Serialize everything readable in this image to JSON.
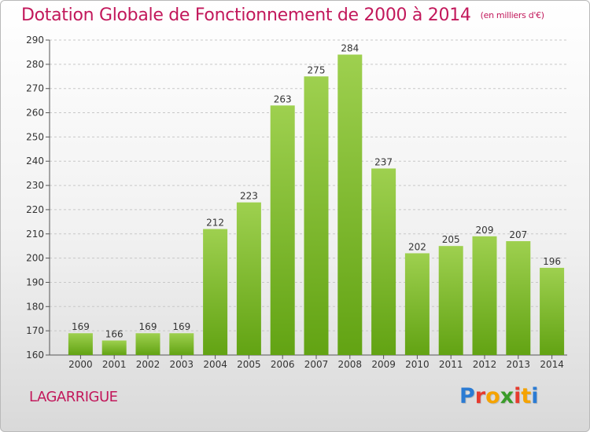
{
  "chart_data": {
    "type": "bar",
    "title": "Dotation Globale de Fonctionnement de 2000 à 2014",
    "subtitle": "(en milliers d'€)",
    "categories": [
      "2000",
      "2001",
      "2002",
      "2003",
      "2004",
      "2005",
      "2006",
      "2007",
      "2008",
      "2009",
      "2010",
      "2011",
      "2012",
      "2013",
      "2014"
    ],
    "values": [
      169,
      166,
      169,
      169,
      212,
      223,
      263,
      275,
      284,
      237,
      202,
      205,
      209,
      207,
      196
    ],
    "ylim": [
      160,
      290
    ],
    "yticks": [
      160,
      170,
      180,
      190,
      200,
      210,
      220,
      230,
      240,
      250,
      260,
      270,
      280,
      290
    ],
    "grid": true,
    "colors": {
      "bar_top": "#9ed04f",
      "bar_bottom": "#62a313",
      "title": "#c2185b",
      "grid": "#c8c8c8"
    }
  },
  "commune": "LAGARRIGUE",
  "logo": {
    "letters": [
      "P",
      "r",
      "o",
      "x",
      "i",
      "t",
      "i"
    ],
    "colors": [
      "#2b7bd3",
      "#e63b2e",
      "#f5a300",
      "#3a9c2a",
      "#e63b2e",
      "#f5a300",
      "#2b7bd3"
    ]
  }
}
